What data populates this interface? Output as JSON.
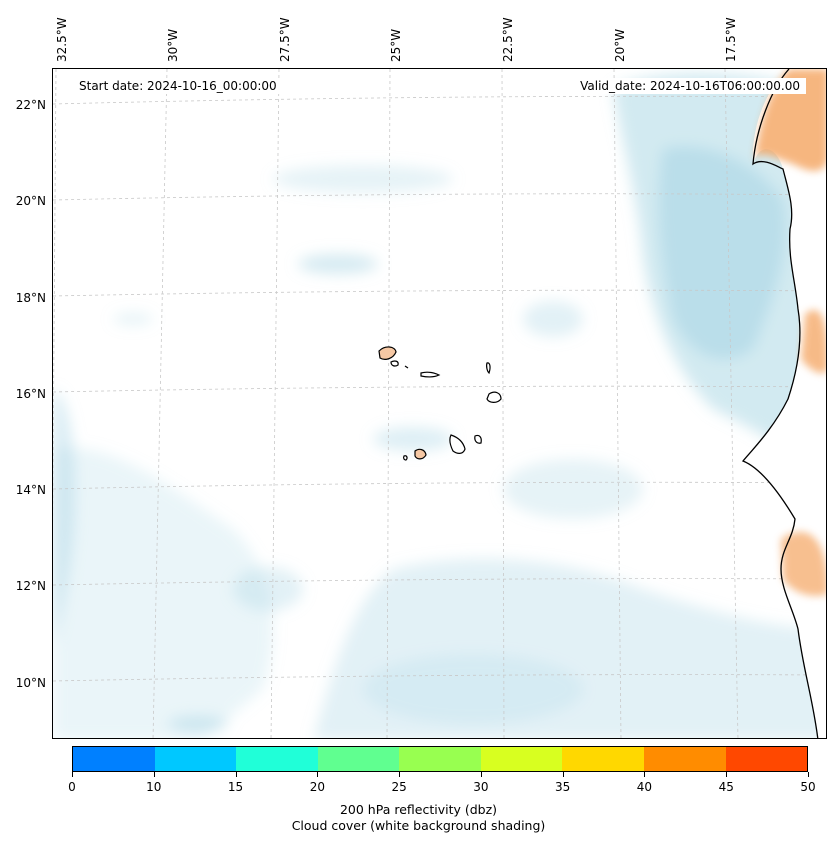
{
  "header": {
    "start_date": "Start date: 2024-10-16_00:00:00",
    "valid_date": "Valid_date: 2024-10-16T06:00:00.00"
  },
  "map": {
    "longitude_labels": [
      "32.5°W",
      "30°W",
      "27.5°W",
      "25°W",
      "22.5°W",
      "20°W",
      "17.5°W"
    ],
    "latitude_labels": [
      "22°N",
      "20°N",
      "18°N",
      "16°N",
      "14°N",
      "12°N",
      "10°N"
    ],
    "gridlines": "dashed light gray",
    "coastline_color": "#000000",
    "cloud_shading_color": "#add8e6",
    "land_reflectivity_color": "#f4a460"
  },
  "colorbar": {
    "ticks": [
      "0",
      "10",
      "15",
      "20",
      "25",
      "30",
      "35",
      "40",
      "45",
      "50"
    ],
    "colors": [
      "#0080ff",
      "#00c8ff",
      "#20ffd8",
      "#60ff90",
      "#98ff50",
      "#d8ff20",
      "#ffd800",
      "#ff8c00",
      "#ff4800"
    ],
    "label_line1": "200 hPa reflectivity (dbz)",
    "label_line2": "Cloud cover (white background shading)"
  }
}
